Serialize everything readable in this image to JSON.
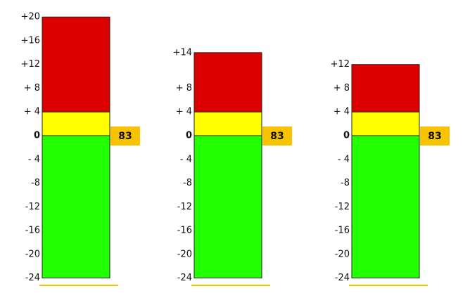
{
  "meters": [
    {
      "ylim": [
        -24,
        20
      ],
      "yticks": [
        {
          "value": 20,
          "label": "+20"
        },
        {
          "value": 16,
          "label": "+16"
        },
        {
          "value": 12,
          "label": "+12"
        },
        {
          "value": 8,
          "label": "+ 8"
        },
        {
          "value": 4,
          "label": "+ 4"
        },
        0,
        {
          "value": -4,
          "label": "- 4"
        },
        -8,
        -12,
        -16,
        -20,
        -24
      ],
      "zones": [
        {
          "color": "#22ff00",
          "start": -24,
          "end": 0
        },
        {
          "color": "#ffff00",
          "start": 0,
          "end": 4
        },
        {
          "color": "#dd0000",
          "start": 4,
          "end": 20
        }
      ],
      "readout": "83"
    },
    {
      "ylim": [
        -24,
        14
      ],
      "yticks": [
        {
          "value": 14,
          "label": "+14"
        },
        {
          "value": 8,
          "label": "+ 8"
        },
        {
          "value": 4,
          "label": "+ 4"
        },
        0,
        {
          "value": -4,
          "label": "- 4"
        },
        -8,
        -12,
        -16,
        -20,
        -24
      ],
      "zones": [
        {
          "color": "#22ff00",
          "start": -24,
          "end": 0
        },
        {
          "color": "#ffff00",
          "start": 0,
          "end": 4
        },
        {
          "color": "#dd0000",
          "start": 4,
          "end": 14
        }
      ],
      "readout": "83"
    },
    {
      "ylim": [
        -24,
        12
      ],
      "yticks": [
        {
          "value": 12,
          "label": "+12"
        },
        {
          "value": 8,
          "label": "+ 8"
        },
        {
          "value": 4,
          "label": "+ 4"
        },
        0,
        {
          "value": -4,
          "label": "- 4"
        },
        -8,
        -12,
        -16,
        -20,
        -24
      ],
      "zones": [
        {
          "color": "#22ff00",
          "start": -24,
          "end": 0
        },
        {
          "color": "#ffff00",
          "start": 0,
          "end": 4
        },
        {
          "color": "#dd0000",
          "start": 4,
          "end": 12
        }
      ],
      "readout": "83"
    }
  ]
}
